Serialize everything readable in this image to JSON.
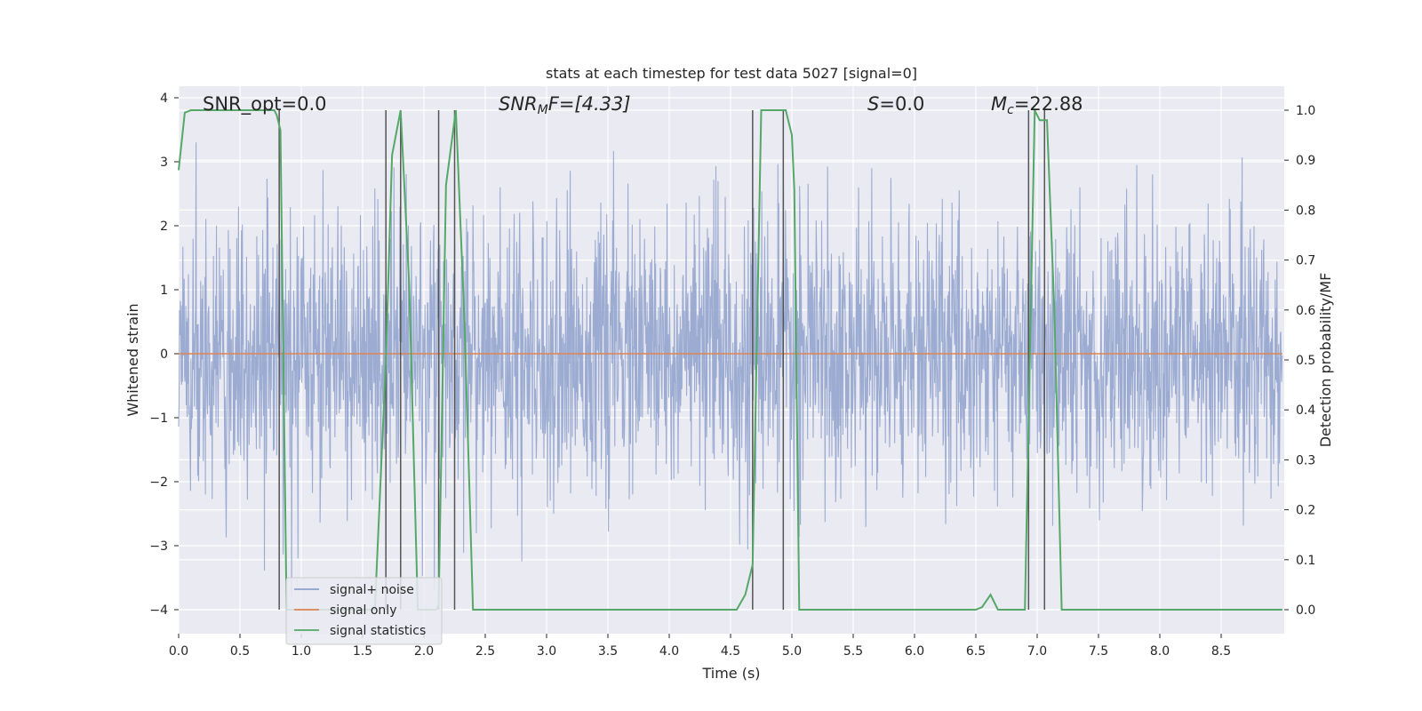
{
  "chart_data": {
    "type": "line",
    "title": "stats at each timestep for test data 5027 [signal=0]",
    "xlabel": "Time (s)",
    "ylabel": "Whitened strain",
    "y2label": "Detection probability/MF",
    "xlim": [
      0.0,
      9.0
    ],
    "ylim": [
      -4.4,
      4.15
    ],
    "y2lim": [
      -0.05,
      1.035
    ],
    "xticks": [
      "0.0",
      "0.5",
      "1.0",
      "1.5",
      "2.0",
      "2.5",
      "3.0",
      "3.5",
      "4.0",
      "4.5",
      "5.0",
      "5.5",
      "6.0",
      "6.5",
      "7.0",
      "7.5",
      "8.0",
      "8.5"
    ],
    "yticks": [
      "4",
      "3",
      "2",
      "1",
      "0",
      "−1",
      "−2",
      "−3",
      "−4"
    ],
    "y2ticks": [
      "1.0",
      "0.9",
      "0.8",
      "0.7",
      "0.6",
      "0.5",
      "0.4",
      "0.3",
      "0.2",
      "0.1",
      "0.0"
    ],
    "grid": true,
    "legend": {
      "position": "lower-left",
      "entries": [
        "signal+ noise",
        "signal only",
        "signal statistics"
      ]
    },
    "annotations": {
      "snr_opt": "SNR_opt=0.0",
      "snr_mf_base": "SNR",
      "snr_mf_sub": "M",
      "snr_mf_rest": "F=[4.33]",
      "s_stat_sym": "S",
      "s_stat_val": "=0.0",
      "mc_sym": "M",
      "mc_sub": "c",
      "mc_val": "=22.88"
    },
    "series": [
      {
        "name": "signal+ noise",
        "color": "#8da0cb",
        "description_values": "whitened strain noise, mostly within [-2, 2] with spikes up to about 3.5 and down to -4",
        "envelope": {
          "min": -4.0,
          "max": 3.9
        }
      },
      {
        "name": "signal only",
        "color": "#dd8452",
        "x": [
          0.0,
          9.0
        ],
        "y": [
          0.0,
          0.0
        ]
      },
      {
        "name": "signal statistics",
        "color": "#55a868",
        "axis": "right",
        "x": [
          0.0,
          0.05,
          0.1,
          0.2,
          0.5,
          0.78,
          0.8,
          0.83,
          0.88,
          1.2,
          1.6,
          1.69,
          1.74,
          1.81,
          1.88,
          1.95,
          2.0,
          2.1,
          2.12,
          2.18,
          2.26,
          2.33,
          2.4,
          3.0,
          4.0,
          4.55,
          4.62,
          4.68,
          4.75,
          4.95,
          5.0,
          5.02,
          5.06,
          5.2,
          6.0,
          6.5,
          6.55,
          6.62,
          6.68,
          6.75,
          6.9,
          6.98,
          7.02,
          7.08,
          7.14,
          7.2,
          8.0,
          9.0
        ],
        "y": [
          0.88,
          0.995,
          1.0,
          1.0,
          1.0,
          1.0,
          0.99,
          0.96,
          0.0,
          0.0,
          0.0,
          0.5,
          0.91,
          1.0,
          0.65,
          0.0,
          0.0,
          0.0,
          0.01,
          0.85,
          1.0,
          0.58,
          0.0,
          0.0,
          0.0,
          0.0,
          0.03,
          0.09,
          1.0,
          1.0,
          0.95,
          0.84,
          0.0,
          0.0,
          0.0,
          0.0,
          0.005,
          0.03,
          0.0,
          0.0,
          0.0,
          1.0,
          0.98,
          0.98,
          0.6,
          0.0,
          0.0,
          0.0
        ]
      }
    ],
    "vertical_lines": [
      {
        "color": "#555555",
        "x": [
          0.82,
          1.69,
          1.81,
          2.12,
          2.25,
          4.68,
          4.93,
          6.93,
          7.06
        ]
      }
    ]
  }
}
